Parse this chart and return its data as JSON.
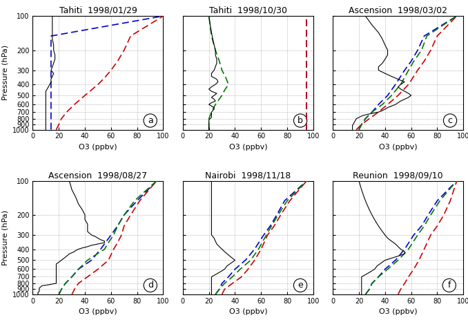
{
  "panels": [
    {
      "title": "Tahiti  1998/01/29",
      "label": "a",
      "xlim": [
        0,
        100
      ],
      "xticks": [
        0,
        20,
        40,
        60,
        80,
        100
      ],
      "obs": {
        "pressure": [
          1000,
          980,
          960,
          940,
          920,
          900,
          880,
          860,
          840,
          820,
          800,
          780,
          760,
          740,
          720,
          700,
          680,
          660,
          640,
          620,
          600,
          580,
          560,
          540,
          520,
          500,
          480,
          460,
          440,
          420,
          400,
          380,
          360,
          340,
          320,
          300,
          280,
          260,
          240,
          220,
          200,
          180,
          160,
          140,
          120,
          100
        ],
        "o3": [
          10,
          10,
          10,
          10,
          10,
          10,
          10,
          10,
          10,
          10,
          10,
          10,
          10,
          10,
          10,
          10,
          10,
          10,
          10,
          10,
          10,
          10,
          10,
          10,
          10,
          10,
          10,
          10,
          11,
          12,
          13,
          14,
          14,
          15,
          16,
          14,
          15,
          16,
          17,
          17,
          16,
          16,
          15,
          15,
          15,
          15
        ]
      },
      "blue": {
        "pressure": [
          1000,
          900,
          800,
          700,
          600,
          500,
          400,
          300,
          250,
          200,
          150,
          100
        ],
        "o3": [
          14,
          14,
          14,
          14,
          14,
          14,
          14,
          14,
          14,
          14,
          14,
          100
        ]
      },
      "red": {
        "pressure": [
          1000,
          900,
          800,
          700,
          600,
          500,
          400,
          350,
          300,
          250,
          200,
          150,
          100
        ],
        "o3": [
          18,
          20,
          22,
          26,
          32,
          40,
          50,
          55,
          60,
          65,
          70,
          75,
          100
        ]
      },
      "green": null
    },
    {
      "title": "Tahiti  1998/10/30",
      "label": "b",
      "xlim": [
        0,
        100
      ],
      "xticks": [
        0,
        20,
        40,
        60,
        80,
        100
      ],
      "obs": {
        "pressure": [
          1000,
          980,
          960,
          940,
          920,
          900,
          880,
          860,
          840,
          820,
          800,
          780,
          760,
          740,
          720,
          700,
          680,
          660,
          640,
          620,
          600,
          580,
          560,
          540,
          520,
          500,
          480,
          460,
          440,
          420,
          400,
          380,
          360,
          340,
          320,
          300,
          280,
          260,
          240,
          220,
          200,
          180,
          160,
          140,
          120,
          100
        ],
        "o3": [
          20,
          20,
          20,
          20,
          20,
          20,
          20,
          20,
          20,
          20,
          21,
          22,
          22,
          22,
          22,
          22,
          23,
          24,
          24,
          22,
          20,
          22,
          25,
          24,
          22,
          24,
          26,
          22,
          20,
          22,
          25,
          27,
          26,
          22,
          22,
          24,
          25,
          26,
          26,
          25,
          25,
          24,
          23,
          22,
          21,
          20
        ]
      },
      "blue": {
        "pressure": [
          1000,
          900,
          800,
          700,
          600,
          500,
          400,
          300,
          250,
          200,
          150,
          100
        ],
        "o3": [
          95,
          95,
          95,
          95,
          95,
          95,
          95,
          95,
          95,
          95,
          95,
          95
        ]
      },
      "red": {
        "pressure": [
          1000,
          900,
          800,
          700,
          600,
          500,
          400,
          300,
          250,
          200,
          150,
          100
        ],
        "o3": [
          95,
          95,
          95,
          95,
          95,
          95,
          95,
          95,
          95,
          95,
          95,
          95
        ]
      },
      "green": {
        "pressure": [
          1000,
          900,
          800,
          700,
          600,
          500,
          450,
          400,
          350,
          300,
          250,
          200,
          150,
          100
        ],
        "o3": [
          20,
          20,
          20,
          22,
          25,
          30,
          32,
          35,
          33,
          30,
          28,
          25,
          22,
          20
        ]
      }
    },
    {
      "title": "Ascension  1998/03/02",
      "label": "c",
      "xlim": [
        0,
        100
      ],
      "xticks": [
        0,
        20,
        40,
        60,
        80,
        100
      ],
      "obs": {
        "pressure": [
          1000,
          960,
          920,
          880,
          840,
          800,
          780,
          760,
          740,
          720,
          700,
          680,
          660,
          640,
          620,
          600,
          580,
          560,
          540,
          520,
          500,
          480,
          460,
          440,
          420,
          400,
          380,
          360,
          340,
          320,
          300,
          280,
          260,
          240,
          220,
          200,
          180,
          160,
          140,
          120,
          100
        ],
        "o3": [
          15,
          15,
          15,
          16,
          17,
          18,
          20,
          22,
          25,
          30,
          35,
          38,
          40,
          42,
          45,
          48,
          50,
          52,
          55,
          58,
          60,
          58,
          55,
          52,
          50,
          52,
          55,
          50,
          45,
          40,
          35,
          35,
          38,
          40,
          42,
          42,
          40,
          38,
          35,
          30,
          25
        ]
      },
      "blue": {
        "pressure": [
          1000,
          900,
          800,
          700,
          600,
          500,
          400,
          300,
          250,
          200,
          150,
          100
        ],
        "o3": [
          20,
          22,
          25,
          30,
          35,
          42,
          48,
          55,
          60,
          65,
          70,
          95
        ]
      },
      "red": {
        "pressure": [
          1000,
          900,
          800,
          700,
          600,
          500,
          400,
          300,
          250,
          200,
          150,
          100
        ],
        "o3": [
          18,
          22,
          28,
          35,
          42,
          50,
          58,
          65,
          70,
          75,
          80,
          95
        ]
      },
      "green": {
        "pressure": [
          1000,
          900,
          800,
          700,
          600,
          500,
          400,
          300,
          250,
          200,
          150,
          100
        ],
        "o3": [
          20,
          22,
          25,
          30,
          38,
          45,
          52,
          58,
          62,
          68,
          72,
          95
        ]
      }
    },
    {
      "title": "Ascension  1998/08/27",
      "label": "d",
      "xlim": [
        0,
        100
      ],
      "xticks": [
        0,
        20,
        40,
        60,
        80,
        100
      ],
      "obs": {
        "pressure": [
          1000,
          980,
          960,
          940,
          920,
          900,
          880,
          860,
          840,
          830,
          820,
          810,
          800,
          780,
          760,
          740,
          720,
          700,
          680,
          660,
          640,
          620,
          600,
          580,
          560,
          540,
          520,
          500,
          480,
          460,
          440,
          430,
          420,
          410,
          400,
          390,
          380,
          370,
          360,
          350,
          340,
          330,
          320,
          310,
          300,
          280,
          260,
          240,
          220,
          200,
          180,
          160,
          140,
          120,
          100
        ],
        "o3": [
          4,
          4,
          4,
          5,
          5,
          5,
          5,
          6,
          7,
          10,
          13,
          15,
          18,
          18,
          18,
          18,
          18,
          18,
          18,
          18,
          18,
          18,
          18,
          18,
          18,
          18,
          20,
          22,
          24,
          26,
          28,
          30,
          32,
          33,
          35,
          38,
          42,
          45,
          50,
          55,
          55,
          52,
          50,
          48,
          45,
          42,
          42,
          42,
          40,
          40,
          38,
          35,
          33,
          30,
          28
        ]
      },
      "blue": {
        "pressure": [
          1000,
          900,
          800,
          700,
          600,
          500,
          400,
          300,
          250,
          200,
          150,
          100
        ],
        "o3": [
          20,
          22,
          25,
          30,
          35,
          45,
          52,
          60,
          65,
          70,
          80,
          95
        ]
      },
      "red": {
        "pressure": [
          1000,
          900,
          800,
          700,
          600,
          500,
          400,
          350,
          300,
          250,
          200,
          150,
          100
        ],
        "o3": [
          30,
          32,
          35,
          42,
          50,
          58,
          62,
          65,
          68,
          70,
          75,
          82,
          95
        ]
      },
      "green": {
        "pressure": [
          1000,
          900,
          800,
          700,
          600,
          500,
          450,
          400,
          350,
          300,
          250,
          200,
          150,
          100
        ],
        "o3": [
          20,
          22,
          25,
          30,
          35,
          42,
          48,
          55,
          58,
          62,
          65,
          70,
          78,
          95
        ]
      }
    },
    {
      "title": "Nairobi  1998/11/18",
      "label": "e",
      "xlim": [
        0,
        100
      ],
      "xticks": [
        0,
        20,
        40,
        60,
        80,
        100
      ],
      "obs": {
        "pressure": [
          1000,
          960,
          920,
          880,
          840,
          800,
          760,
          720,
          700,
          680,
          660,
          640,
          620,
          600,
          580,
          560,
          540,
          520,
          500,
          480,
          460,
          440,
          420,
          400,
          380,
          360,
          340,
          320,
          300,
          280,
          260,
          240,
          220,
          200,
          180,
          160,
          140,
          120,
          100
        ],
        "o3": [
          22,
          22,
          22,
          22,
          22,
          22,
          22,
          22,
          22,
          24,
          26,
          28,
          30,
          32,
          33,
          34,
          36,
          38,
          40,
          38,
          36,
          34,
          32,
          30,
          28,
          26,
          25,
          24,
          22,
          22,
          22,
          22,
          22,
          22,
          22,
          22,
          22,
          22,
          22
        ]
      },
      "blue": {
        "pressure": [
          1000,
          900,
          800,
          700,
          600,
          500,
          400,
          300,
          250,
          200,
          150,
          100
        ],
        "o3": [
          25,
          28,
          30,
          35,
          40,
          48,
          55,
          62,
          67,
          72,
          78,
          95
        ]
      },
      "red": {
        "pressure": [
          1000,
          900,
          800,
          700,
          600,
          500,
          400,
          300,
          250,
          200,
          150,
          100
        ],
        "o3": [
          30,
          32,
          38,
          45,
          50,
          55,
          60,
          65,
          70,
          75,
          82,
          95
        ]
      },
      "green": {
        "pressure": [
          1000,
          900,
          800,
          700,
          600,
          500,
          400,
          300,
          250,
          200,
          150,
          100
        ],
        "o3": [
          25,
          28,
          32,
          38,
          44,
          52,
          58,
          64,
          68,
          73,
          80,
          95
        ]
      }
    },
    {
      "title": "Reunion  1998/09/10",
      "label": "f",
      "xlim": [
        0,
        100
      ],
      "xticks": [
        0,
        20,
        40,
        60,
        80,
        100
      ],
      "obs": {
        "pressure": [
          1000,
          960,
          920,
          880,
          840,
          800,
          760,
          720,
          700,
          680,
          660,
          640,
          620,
          600,
          580,
          560,
          540,
          520,
          500,
          480,
          460,
          440,
          420,
          400,
          380,
          360,
          340,
          320,
          300,
          280,
          260,
          240,
          220,
          200,
          180,
          160,
          140,
          120,
          100
        ],
        "o3": [
          22,
          22,
          22,
          22,
          22,
          22,
          22,
          22,
          22,
          24,
          26,
          28,
          30,
          32,
          33,
          34,
          36,
          38,
          40,
          45,
          50,
          55,
          55,
          52,
          50,
          48,
          45,
          42,
          40,
          38,
          36,
          34,
          32,
          30,
          28,
          26,
          24,
          22,
          20
        ]
      },
      "blue": {
        "pressure": [
          1000,
          900,
          800,
          700,
          600,
          500,
          400,
          300,
          250,
          200,
          150,
          100
        ],
        "o3": [
          25,
          28,
          30,
          35,
          40,
          48,
          55,
          62,
          68,
          73,
          80,
          95
        ]
      },
      "red": {
        "pressure": [
          1000,
          900,
          800,
          700,
          600,
          500,
          400,
          300,
          250,
          200,
          150,
          100
        ],
        "o3": [
          50,
          52,
          55,
          58,
          62,
          66,
          70,
          75,
          80,
          85,
          90,
          95
        ]
      },
      "green": {
        "pressure": [
          1000,
          900,
          800,
          700,
          600,
          500,
          400,
          300,
          250,
          200,
          150,
          100
        ],
        "o3": [
          25,
          28,
          30,
          35,
          42,
          50,
          58,
          65,
          70,
          75,
          82,
          95
        ]
      }
    }
  ],
  "ylim": [
    1000,
    100
  ],
  "yticks": [
    100,
    200,
    300,
    400,
    500,
    600,
    700,
    800,
    900,
    1000
  ],
  "ylabel": "Pressure (hPa)",
  "xlabel": "O3 (ppbv)",
  "obs_color": "#000000",
  "blue_color": "#0000cc",
  "red_color": "#cc0000",
  "green_color": "#007700",
  "bg_color": "#ffffff",
  "title_fontsize": 9,
  "label_fontsize": 8,
  "tick_fontsize": 7
}
